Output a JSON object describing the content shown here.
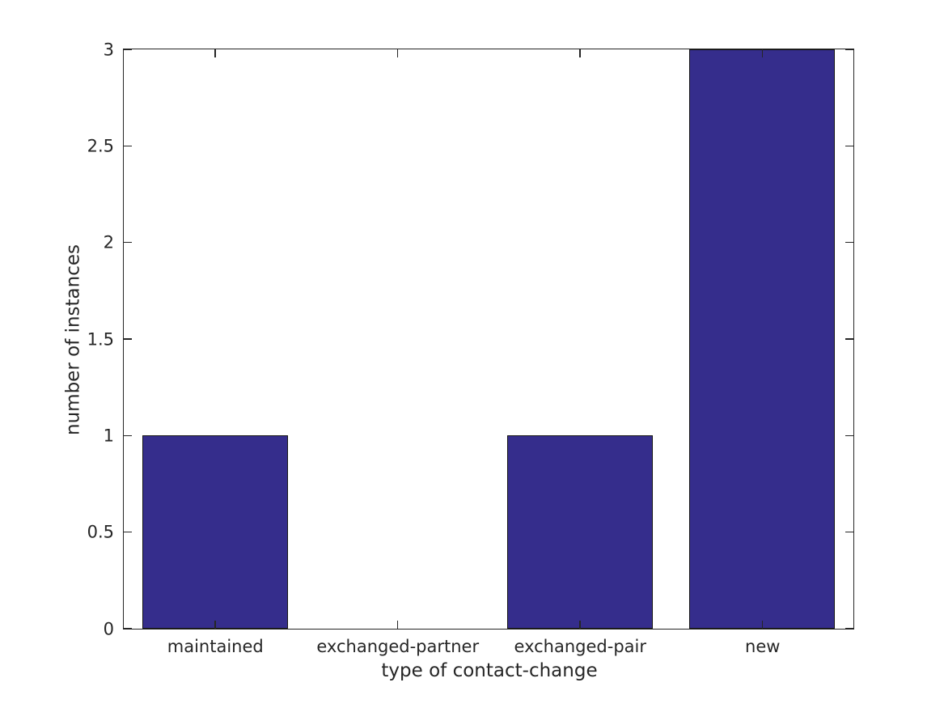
{
  "figure": {
    "background": "#ffffff",
    "axis_color": "#262626",
    "text_color": "#262626"
  },
  "chart_data": {
    "type": "bar",
    "title": "",
    "xlabel": "type of contact-change",
    "ylabel": "number of instances",
    "categories": [
      "maintained",
      "exchanged-partner",
      "exchanged-pair",
      "new"
    ],
    "values": [
      1,
      0,
      1,
      3
    ],
    "ylim": [
      0,
      3
    ],
    "yticks": [
      0,
      0.5,
      1,
      1.5,
      2,
      2.5,
      3
    ],
    "ytick_labels": [
      "0",
      "0.5",
      "1",
      "1.5",
      "2",
      "2.5",
      "3"
    ],
    "bar_width_fraction": 0.8,
    "bar_color": "#352D8C",
    "bar_edge_color": "#141414",
    "grid": false,
    "legend_position": "none",
    "tick_direction": "in",
    "box": true
  }
}
